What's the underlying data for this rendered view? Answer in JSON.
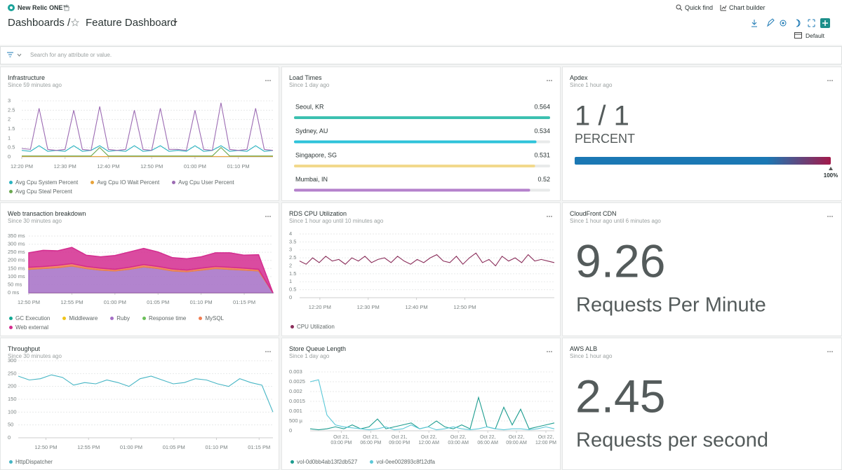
{
  "header": {
    "logo": "New Relic ONE™",
    "quick_find": "Quick find",
    "chart_builder": "Chart builder",
    "breadcrumb": "Dashboards /",
    "dashboard_name": "Feature Dashboard",
    "view": "Default",
    "search_placeholder": "Search for any attribute or value."
  },
  "widgets": [
    {
      "chart_data": {
        "type": "line",
        "title": "Infrastructure",
        "subtitle": "Since 59 minutes ago",
        "grid": true,
        "xlim": [
          0,
          29
        ],
        "xticks": [
          {
            "value": 0,
            "label": "12:20 PM"
          },
          {
            "value": 5,
            "label": "12:30 PM"
          },
          {
            "value": 10,
            "label": "12:40 PM"
          },
          {
            "value": 15,
            "label": "12:50 PM"
          },
          {
            "value": 20,
            "label": "01:00 PM"
          },
          {
            "value": 25,
            "label": "01:10 PM"
          }
        ],
        "ylim": [
          0,
          3
        ],
        "yticks": [
          0,
          0.5,
          1,
          1.5,
          2,
          2.5,
          3
        ],
        "series": [
          {
            "name": "Avg Cpu System Percent",
            "color": "#2bb3c0",
            "values": [
              0.35,
              0.3,
              0.6,
              0.3,
              0.35,
              0.3,
              0.6,
              0.3,
              0.35,
              0.6,
              0.3,
              0.35,
              0.3,
              0.6,
              0.3,
              0.35,
              0.6,
              0.3,
              0.35,
              0.3,
              0.6,
              0.3,
              0.35,
              0.6,
              0.3,
              0.35,
              0.3,
              0.6,
              0.3,
              0.35
            ]
          },
          {
            "name": "Avg Cpu IO Wait Percent",
            "color": "#e8a33a",
            "values": [
              0.02,
              0.02,
              0.02,
              0.02,
              0.02,
              0.02,
              0.02,
              0.02,
              0.02,
              0.02,
              0.02,
              0.02,
              0.02,
              0.02,
              0.02,
              0.02,
              0.02,
              0.02,
              0.02,
              0.02,
              0.02,
              0.02,
              0.02,
              0.02,
              0.02,
              0.02,
              0.02,
              0.02,
              0.02,
              0.02
            ]
          },
          {
            "name": "Avg Cpu User Percent",
            "color": "#9c6bb3",
            "values": [
              0.45,
              0.4,
              2.6,
              0.4,
              0.35,
              0.4,
              2.5,
              0.4,
              0.35,
              2.7,
              0.4,
              0.35,
              0.4,
              2.5,
              0.4,
              0.35,
              2.6,
              0.4,
              0.4,
              0.35,
              2.5,
              0.4,
              0.35,
              2.9,
              0.4,
              0.35,
              0.4,
              2.6,
              0.4,
              0.35
            ]
          },
          {
            "name": "Avg Cpu Steal Percent",
            "color": "#6aa84f",
            "values": [
              0.05,
              0.05,
              0.05,
              0.05,
              0.05,
              0.05,
              0.05,
              0.05,
              0.05,
              0.5,
              0.05,
              0.05,
              0.05,
              0.05,
              0.05,
              0.05,
              0.05,
              0.05,
              0.05,
              0.05,
              0.05,
              0.05,
              0.05,
              0.5,
              0.05,
              0.05,
              0.05,
              0.05,
              0.05,
              0.05
            ]
          }
        ]
      }
    },
    {
      "chart_data": {
        "type": "bar",
        "title": "Load Times",
        "subtitle": "Since 1 day ago",
        "categories": [
          "Seoul, KR",
          "Sydney, AU",
          "Singapore, SG",
          "Mumbai, IN"
        ],
        "values": [
          0.564,
          0.534,
          0.531,
          0.52
        ],
        "colors": [
          "#3cc0b0",
          "#2ec3da",
          "#f2d98c",
          "#b581cc"
        ],
        "xlim": [
          0,
          0.564
        ]
      }
    },
    {
      "chart_data": {
        "type": "progress",
        "title": "Apdex",
        "subtitle": "Since 1 hour ago",
        "value": 1,
        "value_label": "1 / 1",
        "unit": "PERCENT",
        "score": {
          "value": 100,
          "label": "100%"
        },
        "xlim": [
          0,
          100
        ],
        "colors": [
          "#1b78b4",
          "#a3194a"
        ]
      }
    },
    {
      "chart_data": {
        "type": "area",
        "title": "Web transaction breakdown",
        "subtitle": "Since 30 minutes ago",
        "grid": true,
        "stacked": true,
        "xlim": [
          0,
          17
        ],
        "xticks": [
          {
            "value": 0,
            "label": "12:50 PM"
          },
          {
            "value": 3,
            "label": "12:55 PM"
          },
          {
            "value": 6,
            "label": "01:00 PM"
          },
          {
            "value": 9,
            "label": "01:05 PM"
          },
          {
            "value": 12,
            "label": "01:10 PM"
          },
          {
            "value": 15,
            "label": "01:15 PM"
          }
        ],
        "ylim": [
          0,
          350
        ],
        "yticks": [
          {
            "value": 0,
            "label": "0 ms"
          },
          {
            "value": 50,
            "label": "50 ms"
          },
          {
            "value": 100,
            "label": "100 ms"
          },
          {
            "value": 150,
            "label": "150 ms"
          },
          {
            "value": 200,
            "label": "200 ms"
          },
          {
            "value": 250,
            "label": "250 ms"
          },
          {
            "value": 300,
            "label": "300 ms"
          },
          {
            "value": 350,
            "label": "350 ms"
          }
        ],
        "series": [
          {
            "name": "GC Execution",
            "color": "#11a893",
            "values": [
              0,
              0,
              0,
              0,
              0,
              0,
              0,
              0,
              0,
              0,
              0,
              0,
              0,
              0,
              0,
              0,
              0,
              0
            ]
          },
          {
            "name": "Middleware",
            "color": "#f0c419",
            "values": [
              0,
              0,
              0,
              0,
              0,
              0,
              0,
              0,
              0,
              0,
              0,
              0,
              0,
              0,
              0,
              0,
              0,
              0
            ]
          },
          {
            "name": "Ruby",
            "color": "#a56fc6",
            "values": [
              145,
              150,
              155,
              165,
              150,
              140,
              135,
              145,
              160,
              150,
              135,
              130,
              140,
              150,
              145,
              140,
              135,
              0
            ]
          },
          {
            "name": "Response time",
            "color": "#6bbf59",
            "values": [
              0,
              0,
              0,
              0,
              0,
              0,
              0,
              0,
              0,
              0,
              0,
              0,
              0,
              0,
              0,
              0,
              0,
              0
            ]
          },
          {
            "name": "MySQL",
            "color": "#f07d52",
            "values": [
              12,
              12,
              14,
              15,
              12,
              12,
              10,
              12,
              14,
              12,
              12,
              10,
              12,
              12,
              12,
              12,
              10,
              0
            ]
          },
          {
            "name": "Web external",
            "color": "#d42c8f",
            "values": [
              90,
              100,
              90,
              100,
              70,
              70,
              85,
              95,
              100,
              90,
              70,
              70,
              70,
              85,
              90,
              80,
              90,
              0
            ]
          }
        ]
      }
    },
    {
      "chart_data": {
        "type": "line",
        "title": "RDS CPU Utilization",
        "subtitle": "Since 1 hour ago until 10 minutes ago",
        "grid": true,
        "xlim": [
          0,
          39
        ],
        "xticks": [
          {
            "value": 3.1,
            "label": "12:20 PM"
          },
          {
            "value": 10.5,
            "label": "12:30 PM"
          },
          {
            "value": 17.9,
            "label": "12:40 PM"
          },
          {
            "value": 25.3,
            "label": "12:50 PM"
          }
        ],
        "ylim": [
          0,
          4
        ],
        "yticks": [
          0,
          0.5,
          1,
          1.5,
          2,
          2.5,
          3,
          3.5,
          4
        ],
        "series": [
          {
            "name": "CPU Utilization",
            "color": "#8a2d5a",
            "values": [
              2.3,
              2.1,
              2.5,
              2.2,
              2.6,
              2.3,
              2.4,
              2.1,
              2.5,
              2.3,
              2.6,
              2.2,
              2.4,
              2.5,
              2.2,
              2.6,
              2.3,
              2.1,
              2.4,
              2.2,
              2.5,
              2.7,
              2.3,
              2.2,
              2.6,
              2.1,
              2.5,
              2.8,
              2.2,
              2.4,
              2.0,
              2.6,
              2.3,
              2.5,
              2.2,
              2.7,
              2.3,
              2.4,
              2.3,
              2.2
            ]
          }
        ]
      }
    },
    {
      "chart_data": {
        "type": "billboard",
        "title": "CloudFront CDN",
        "subtitle": "Since 1 hour ago until 6 minutes ago",
        "value": 9.26,
        "label": "Requests Per Minute"
      }
    },
    {
      "chart_data": {
        "type": "line",
        "title": "Throughput",
        "subtitle": "Since 30 minutes ago",
        "grid": true,
        "xlim": [
          0,
          23
        ],
        "xticks": [
          {
            "value": 2.5,
            "label": "12:50 PM"
          },
          {
            "value": 6.35,
            "label": "12:55 PM"
          },
          {
            "value": 10.2,
            "label": "01:00 PM"
          },
          {
            "value": 14.05,
            "label": "01:05 PM"
          },
          {
            "value": 17.9,
            "label": "01:10 PM"
          },
          {
            "value": 21.75,
            "label": "01:15 PM"
          }
        ],
        "ylim": [
          0,
          300
        ],
        "yticks": [
          0,
          50,
          100,
          150,
          200,
          250,
          300
        ],
        "series": [
          {
            "name": "HttpDispatcher",
            "color": "#45b5c4",
            "values": [
              240,
              225,
              230,
              245,
              235,
              205,
              215,
              210,
              225,
              215,
              200,
              230,
              240,
              225,
              210,
              215,
              230,
              225,
              210,
              200,
              230,
              215,
              205,
              100
            ]
          }
        ]
      }
    },
    {
      "chart_data": {
        "type": "line",
        "title": "Store Queue Length",
        "subtitle": "Since 1 day ago",
        "grid": true,
        "xlim": [
          0,
          29
        ],
        "xticks": [
          {
            "value": 3.7,
            "label": "Oct 21, 03:00 PM"
          },
          {
            "value": 7.2,
            "label": "Oct 21, 06:00 PM"
          },
          {
            "value": 10.6,
            "label": "Oct 21, 09:00 PM"
          },
          {
            "value": 14.1,
            "label": "Oct 22, 12:00 AM"
          },
          {
            "value": 17.6,
            "label": "Oct 22, 03:00 AM"
          },
          {
            "value": 21.1,
            "label": "Oct 22, 06:00 AM"
          },
          {
            "value": 24.5,
            "label": "Oct 22, 09:00 AM"
          },
          {
            "value": 28,
            "label": "Oct 22, 12:00 PM"
          }
        ],
        "ylim": [
          0,
          0.003
        ],
        "yticks": [
          0,
          {
            "value": 0.0005,
            "label": "500 µ"
          },
          0.001,
          0.0015,
          0.002,
          0.0025,
          0.003
        ],
        "series": [
          {
            "name": "vol-0d0bb4ab13f2db527",
            "color": "#1c9c8f",
            "values": [
              0.0001,
              5e-05,
              0.0001,
              0.0002,
              0.0001,
              0.0003,
              0.0001,
              0.0002,
              0.0006,
              0.0001,
              0.0002,
              0.0003,
              0.0004,
              0.0001,
              0.0002,
              0.0005,
              0.0002,
              0.0001,
              0.0003,
              0.0001,
              0.0017,
              0.0002,
              0.0001,
              0.0012,
              0.0003,
              0.0011,
              0.0001,
              0.0002,
              0.0003,
              0.0004
            ]
          },
          {
            "name": "vol-0ee002893c8f12dfa",
            "color": "#5bc8d8",
            "values": [
              0.0025,
              0.0026,
              0.0008,
              0.0003,
              0.0002,
              0.00015,
              0.0001,
              5e-05,
              0.0001,
              0.0002,
              5e-05,
              0.0001,
              0.0003,
              0.0001,
              0.0002,
              5e-05,
              0.0001,
              0.0002,
              0.0001,
              5e-05,
              0.0001,
              0.0002,
              0.0001,
              5e-05,
              0.0001,
              0.0001,
              5e-05,
              0.0001,
              0.0002,
              0.0001
            ]
          }
        ]
      }
    },
    {
      "chart_data": {
        "type": "billboard",
        "title": "AWS ALB",
        "subtitle": "Since 1 hour ago",
        "value": 2.45,
        "label": "Requests per second"
      }
    }
  ]
}
